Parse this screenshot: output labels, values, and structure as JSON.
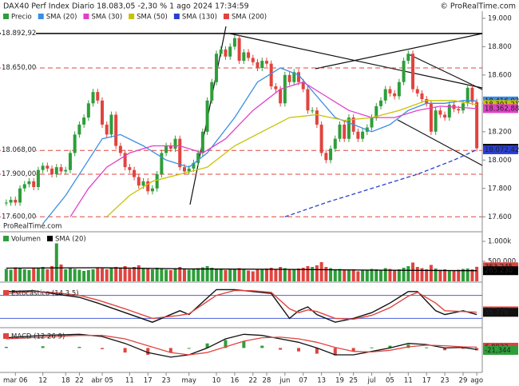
{
  "header": {
    "title": "DAX40 Perf Index Diario 18.083,05 -2,30 % 1 ago 2024 17:34:59",
    "copyright": "© ProRealTime.com"
  },
  "watermark": "ProRealTime.com",
  "chart_data": [
    {
      "type": "candlestick",
      "legend": "Precio",
      "up_color": "#2e9e3a",
      "down_color": "#e0443f",
      "xlim": [
        -0.5,
        103.5
      ],
      "ylim": [
        17500,
        19050
      ],
      "yticks": [
        {
          "value": 19000,
          "label": "19.000"
        },
        {
          "value": 18800,
          "label": "18.800"
        },
        {
          "value": 18600,
          "label": "18.600"
        },
        {
          "value": 18400,
          "label": "18.400"
        },
        {
          "value": 18200,
          "label": "18.200"
        },
        {
          "value": 18000,
          "label": "18.000"
        },
        {
          "value": 17800,
          "label": "17.800"
        },
        {
          "value": 17600,
          "label": "17.600"
        }
      ],
      "close": [
        17700,
        17720,
        17700,
        17800,
        17830,
        17850,
        17810,
        17930,
        17960,
        17940,
        17900,
        17950,
        17920,
        17930,
        18050,
        18180,
        18250,
        18300,
        18400,
        18480,
        18420,
        18250,
        18180,
        18320,
        18100,
        18050,
        17950,
        17930,
        17880,
        17820,
        17850,
        17780,
        17800,
        17900,
        18050,
        18100,
        18080,
        18150,
        17950,
        17920,
        17940,
        17980,
        18050,
        18200,
        18420,
        18550,
        18750,
        18780,
        18730,
        18800,
        18860,
        18700,
        18760,
        18720,
        18690,
        18650,
        18700,
        18680,
        18520,
        18500,
        18400,
        18600,
        18550,
        18620,
        18550,
        18500,
        18350,
        18350,
        18250,
        18050,
        18000,
        18080,
        18150,
        18250,
        18150,
        18300,
        18200,
        18150,
        18200,
        18230,
        18300,
        18380,
        18420,
        18500,
        18470,
        18450,
        18550,
        18700,
        18750,
        18500,
        18470,
        18430,
        18400,
        18200,
        18350,
        18320,
        18300,
        18390,
        18360,
        18350,
        18400,
        18510,
        18410,
        18083.05
      ],
      "series": [
        {
          "name": "SMA (20)",
          "color": "#3a8ee6",
          "dashed": false,
          "x": [
            8,
            13,
            17,
            21,
            25,
            30,
            35,
            40,
            44,
            50,
            55,
            60,
            64,
            68,
            72,
            76,
            80,
            84,
            88,
            92,
            96,
            100,
            103
          ],
          "values": [
            17550,
            17750,
            17950,
            18150,
            18180,
            18100,
            18000,
            17950,
            18050,
            18300,
            18550,
            18650,
            18600,
            18450,
            18300,
            18250,
            18200,
            18250,
            18350,
            18400,
            18400,
            18420,
            18416.93
          ]
        },
        {
          "name": "SMA (30)",
          "color": "#e040c8",
          "dashed": false,
          "x": [
            14,
            18,
            22,
            27,
            32,
            38,
            43,
            48,
            54,
            60,
            65,
            70,
            75,
            80,
            85,
            90,
            95,
            100,
            103
          ],
          "values": [
            17600,
            17800,
            17950,
            18050,
            18100,
            18100,
            18050,
            18150,
            18350,
            18500,
            18550,
            18450,
            18350,
            18300,
            18300,
            18350,
            18380,
            18370,
            18362.88
          ]
        },
        {
          "name": "SMA (50)",
          "color": "#c8c200",
          "dashed": false,
          "x": [
            22,
            27,
            32,
            38,
            44,
            50,
            56,
            62,
            68,
            74,
            80,
            86,
            92,
            98,
            103
          ],
          "values": [
            17600,
            17750,
            17850,
            17900,
            17950,
            18100,
            18200,
            18300,
            18320,
            18280,
            18300,
            18350,
            18420,
            18420,
            18391.21
          ]
        },
        {
          "name": "SMA (130)",
          "color": "#2a3fd0",
          "dashed": true,
          "x": [
            61,
            70,
            80,
            90,
            98,
            103
          ],
          "values": [
            17600,
            17700,
            17800,
            17900,
            18000,
            18072.42
          ]
        },
        {
          "name": "SMA (200)",
          "color": "#e0443f",
          "dashed": false,
          "x": [],
          "values": []
        }
      ],
      "levels": [
        {
          "value": 18892.92,
          "label": "18.892,92",
          "color": "#000000",
          "dashed": false
        },
        {
          "value": 18650,
          "label": "18.650,00",
          "color": "#e0443f",
          "dashed": true
        },
        {
          "value": 18068,
          "label": "18.068,00",
          "color": "#e0443f",
          "dashed": true
        },
        {
          "value": 17900,
          "label": "17.900,00",
          "color": "#e0443f",
          "dashed": true
        },
        {
          "value": 17600,
          "label": "17.600,00",
          "color": "#e0443f",
          "dashed": true
        }
      ],
      "last_labels": [
        {
          "value": 18416.93,
          "label": "18.416,93",
          "color": "#3a8ee6"
        },
        {
          "value": 18391.21,
          "label": "18.391,21",
          "color": "#c8c200"
        },
        {
          "value": 18362.88,
          "label": "18.362,88",
          "color": "#e040c8"
        },
        {
          "value": 18083.05,
          "label": "18.083,05",
          "color": "#000000"
        },
        {
          "value": 18072.42,
          "label": "18.072,42",
          "color": "#2a3fd0"
        }
      ]
    },
    {
      "type": "bar",
      "legend": "Volumen",
      "xlim": [
        -0.5,
        103.5
      ],
      "ylim": [
        0,
        1200000
      ],
      "yticks": [
        {
          "value": 1000000,
          "label": "1.000k"
        },
        {
          "value": 500000,
          "label": "500.000"
        }
      ],
      "values": [
        310000,
        290000,
        350000,
        330000,
        300000,
        280000,
        340000,
        320000,
        360000,
        300000,
        380000,
        950000,
        420000,
        300000,
        330000,
        310000,
        290000,
        260000,
        280000,
        300000,
        350000,
        320000,
        300000,
        330000,
        360000,
        340000,
        380000,
        310000,
        360000,
        400000,
        330000,
        320000,
        300000,
        340000,
        310000,
        290000,
        280000,
        330000,
        360000,
        300000,
        290000,
        310000,
        330000,
        350000,
        380000,
        340000,
        320000,
        300000,
        280000,
        290000,
        310000,
        330000,
        300000,
        270000,
        250000,
        290000,
        310000,
        320000,
        340000,
        300000,
        360000,
        330000,
        310000,
        300000,
        320000,
        340000,
        380000,
        360000,
        400000,
        480000,
        360000,
        330000,
        300000,
        310000,
        290000,
        280000,
        300000,
        250000,
        270000,
        290000,
        310000,
        300000,
        280000,
        330000,
        310000,
        290000,
        300000,
        340000,
        380000,
        470000,
        360000,
        330000,
        300000,
        410000,
        320000,
        290000,
        300000,
        280000,
        270000,
        290000,
        310000,
        320000,
        300000,
        363245
      ],
      "series": [
        {
          "name": "SMA (20)",
          "color": "#000000",
          "x": [
            0,
            20,
            40,
            60,
            80,
            103
          ],
          "values": [
            330000,
            340000,
            310000,
            300000,
            280000,
            265230
          ]
        }
      ],
      "last_labels": [
        {
          "value": 363245,
          "label": "363.245",
          "color": "#e0443f"
        },
        {
          "value": 265230,
          "label": "265.230",
          "color": "#000000"
        }
      ]
    },
    {
      "type": "line",
      "legend": "Estocástico (14 3 5)",
      "xlim": [
        -0.5,
        103.5
      ],
      "ylim": [
        0,
        100
      ],
      "levels": [
        80,
        20
      ],
      "level_color": "#4a5fd8",
      "series": [
        {
          "color": "#111111",
          "x": [
            0,
            6,
            10,
            16,
            20,
            26,
            32,
            38,
            40,
            46,
            50,
            54,
            58,
            62,
            64,
            66,
            68,
            72,
            76,
            80,
            84,
            88,
            90,
            94,
            96,
            100,
            103
          ],
          "values": [
            90,
            92,
            85,
            75,
            60,
            35,
            10,
            40,
            30,
            95,
            95,
            90,
            85,
            20,
            40,
            50,
            30,
            10,
            20,
            35,
            60,
            90,
            90,
            40,
            30,
            40,
            30
          ]
        },
        {
          "color": "#e0443f",
          "x": [
            0,
            6,
            10,
            16,
            20,
            26,
            32,
            38,
            40,
            46,
            50,
            54,
            58,
            62,
            64,
            66,
            68,
            72,
            76,
            80,
            84,
            88,
            90,
            94,
            96,
            100,
            103
          ],
          "values": [
            85,
            90,
            88,
            80,
            68,
            45,
            20,
            28,
            32,
            80,
            93,
            92,
            88,
            45,
            35,
            42,
            38,
            20,
            18,
            28,
            48,
            78,
            88,
            60,
            40,
            38,
            36
          ]
        }
      ],
      "last_labels": [
        {
          "value": 39.658,
          "label": "39,658",
          "color": "#e0443f"
        },
        {
          "value": 35.77,
          "label": "35,770",
          "color": "#111111"
        }
      ]
    },
    {
      "type": "macd",
      "legend": "MACD (12 26 9)",
      "xlim": [
        -0.5,
        103.5
      ],
      "ylim": [
        -200,
        150
      ],
      "xticks": [
        {
          "value": 2,
          "label": "mar 06"
        },
        {
          "value": 8,
          "label": "12"
        },
        {
          "value": 13,
          "label": "18"
        },
        {
          "value": 16,
          "label": "22"
        },
        {
          "value": 21,
          "label": "abr 05"
        },
        {
          "value": 27,
          "label": "11"
        },
        {
          "value": 31,
          "label": "17"
        },
        {
          "value": 35,
          "label": "23"
        },
        {
          "value": 40,
          "label": "may"
        },
        {
          "value": 46,
          "label": "10"
        },
        {
          "value": 50,
          "label": "16"
        },
        {
          "value": 54,
          "label": "22"
        },
        {
          "value": 57,
          "label": "28"
        },
        {
          "value": 61,
          "label": "jun"
        },
        {
          "value": 65,
          "label": "07"
        },
        {
          "value": 69,
          "label": "13"
        },
        {
          "value": 73,
          "label": "19"
        },
        {
          "value": 76,
          "label": "25"
        },
        {
          "value": 80,
          "label": "jul"
        },
        {
          "value": 84,
          "label": "05"
        },
        {
          "value": 88,
          "label": "11"
        },
        {
          "value": 92,
          "label": "17"
        },
        {
          "value": 96,
          "label": "23"
        },
        {
          "value": 100,
          "label": "29"
        },
        {
          "value": 103,
          "label": "ago"
        }
      ],
      "x": [
        0,
        8,
        16,
        21,
        26,
        31,
        36,
        40,
        44,
        48,
        52,
        56,
        60,
        64,
        68,
        72,
        76,
        80,
        84,
        88,
        92,
        96,
        100,
        103
      ],
      "histogram": [
        10,
        15,
        10,
        -10,
        -40,
        -60,
        -40,
        0,
        40,
        70,
        60,
        20,
        -15,
        -30,
        -50,
        -65,
        -30,
        5,
        20,
        30,
        5,
        -20,
        -5,
        -21
      ],
      "series": [
        {
          "color": "#111111",
          "values": [
            90,
            110,
            120,
            100,
            40,
            -40,
            -80,
            -60,
            0,
            80,
            120,
            110,
            80,
            50,
            0,
            -60,
            -60,
            -30,
            0,
            40,
            30,
            0,
            5,
            -14
          ]
        },
        {
          "color": "#e0443f",
          "values": [
            80,
            95,
            110,
            110,
            80,
            20,
            -40,
            -60,
            -40,
            10,
            60,
            90,
            95,
            80,
            50,
            5,
            -30,
            -35,
            -20,
            10,
            25,
            20,
            10,
            7
          ]
        }
      ],
      "hist_up": "#2e9e3a",
      "hist_down": "#e0443f",
      "last_labels": [
        {
          "value": 6.8932,
          "label": "6,8932",
          "color": "#e0443f"
        },
        {
          "value": -21.344,
          "label": "-21,344",
          "color": "#2e9e3a"
        }
      ]
    }
  ]
}
